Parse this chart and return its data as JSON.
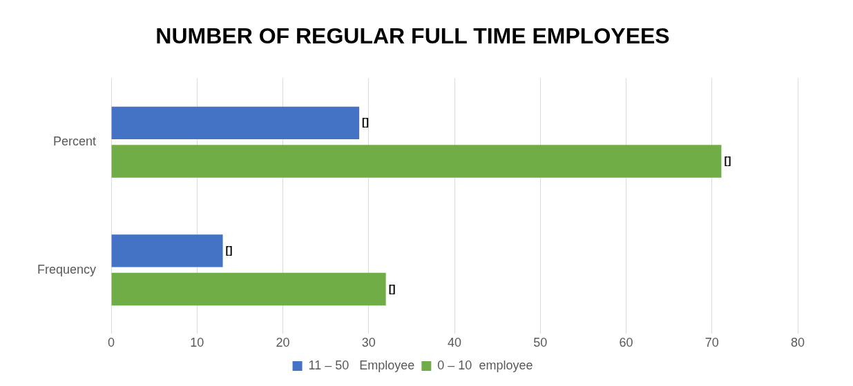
{
  "chart_data": {
    "type": "bar",
    "orientation": "horizontal",
    "title": "NUMBER OF REGULAR FULL TIME EMPLOYEES",
    "categories": [
      "Percent",
      "Frequency"
    ],
    "series": [
      {
        "name": "11 – 50   Employee",
        "color": "#4472c4",
        "values": [
          28.9,
          13
        ],
        "value_labels": [
          "[]",
          "[]"
        ]
      },
      {
        "name": "0 – 10  employee",
        "color": "#70ad47",
        "values": [
          71.1,
          32
        ],
        "value_labels": [
          "[]",
          "[]"
        ]
      }
    ],
    "xlim": [
      0,
      80
    ],
    "xticks": [
      0,
      10,
      20,
      30,
      40,
      50,
      60,
      70,
      80
    ],
    "grid": "x",
    "legend": "bottom"
  }
}
